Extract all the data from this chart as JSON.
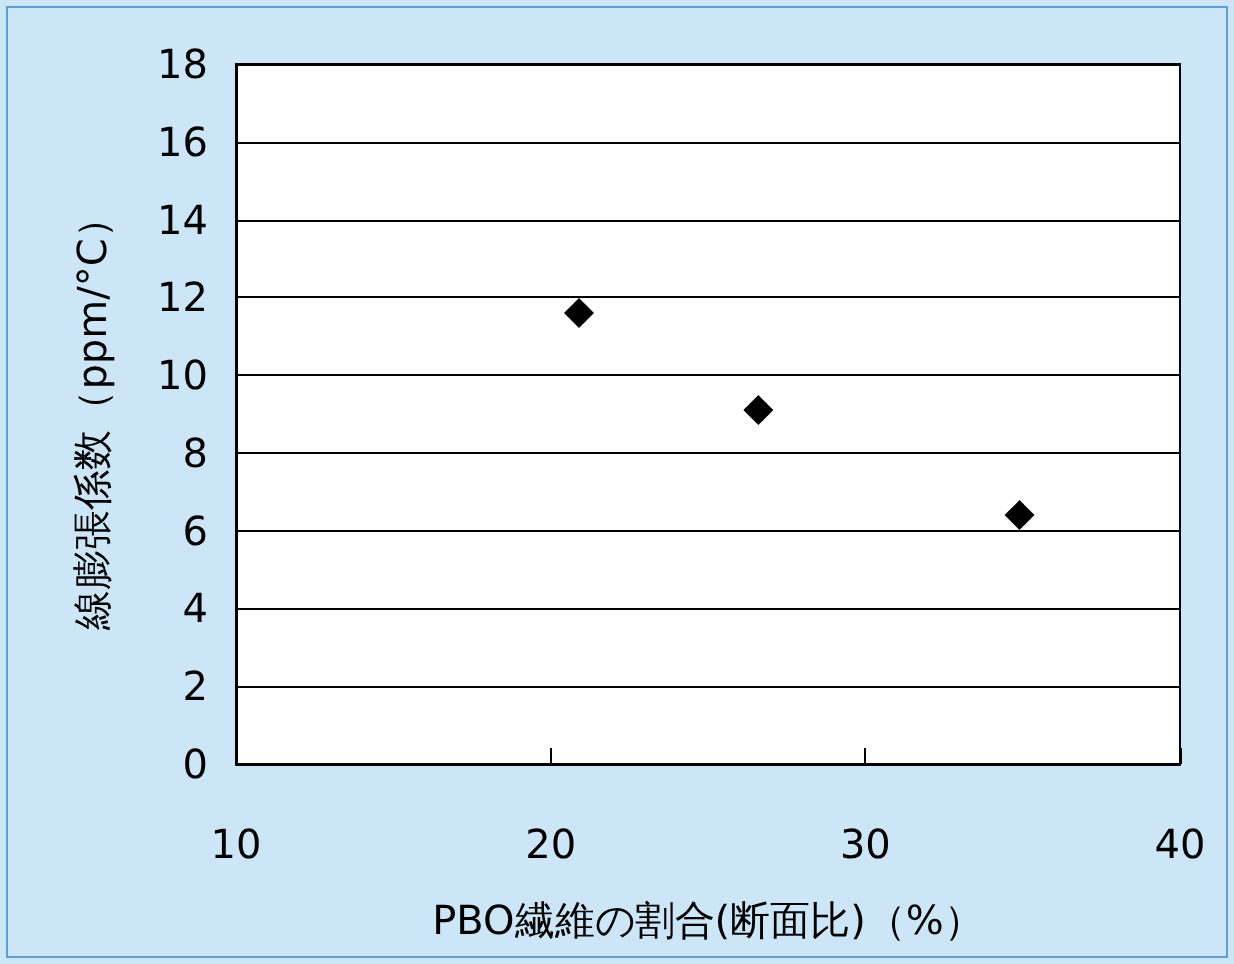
{
  "chart_data": {
    "type": "scatter",
    "xlabel": "PBO繊維の割合(断面比)（%）",
    "ylabel": "線膨張係数（ppm/°C）",
    "x": [
      20.9,
      26.6,
      34.9
    ],
    "series": [
      {
        "color": "#000000",
        "values": [
          11.6,
          9.1,
          6.4
        ]
      }
    ],
    "xlim": [
      10,
      40
    ],
    "xticks": [
      10,
      20,
      30,
      40
    ],
    "ylim": [
      0,
      18
    ],
    "yticks": [
      0,
      2,
      4,
      6,
      8,
      10,
      12,
      14,
      16,
      18
    ],
    "grid": "y",
    "marker": "diamond"
  }
}
